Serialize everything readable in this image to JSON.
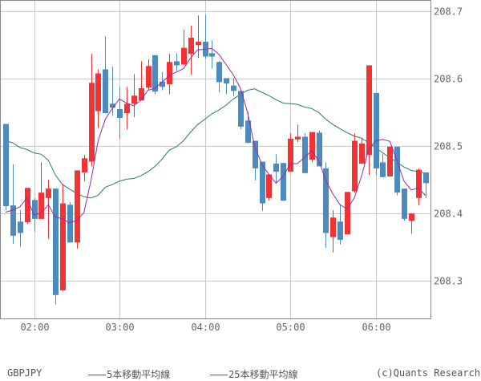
{
  "chart_data": {
    "type": "candlestick",
    "symbol": "GBPJPY",
    "copyright": "(c)Quants Research",
    "ylim": [
      208.243,
      208.717
    ],
    "y_ticks": [
      "208.3",
      "208.4",
      "208.5",
      "208.6",
      "208.7"
    ],
    "x_ticks": [
      "02:00",
      "03:00",
      "04:00",
      "05:00",
      "06:00"
    ],
    "x_range": [
      "01:40",
      "06:35"
    ],
    "interval_minutes": 5,
    "grid": true,
    "legend_placement": "bottom",
    "colors": {
      "up": "#f33333",
      "down": "#4d8bbd",
      "ma5": "#9b27b0",
      "ma25": "#2a7a70",
      "grid": "#c8c8c8",
      "frame": "#888888"
    },
    "candle_fields": [
      "time",
      "open",
      "high",
      "low",
      "close"
    ],
    "candles": [
      [
        "01:40",
        208.533,
        208.533,
        208.405,
        208.411
      ],
      [
        "01:45",
        208.412,
        208.473,
        208.355,
        208.367
      ],
      [
        "01:50",
        208.388,
        208.405,
        208.351,
        208.371
      ],
      [
        "01:55",
        208.387,
        208.438,
        208.385,
        208.438
      ],
      [
        "02:00",
        208.42,
        208.423,
        208.373,
        208.392
      ],
      [
        "02:05",
        208.392,
        208.476,
        208.392,
        208.431
      ],
      [
        "02:10",
        208.423,
        208.45,
        208.363,
        208.437
      ],
      [
        "02:15",
        208.437,
        208.437,
        208.265,
        208.279
      ],
      [
        "02:20",
        208.286,
        208.444,
        208.285,
        208.415
      ],
      [
        "02:25",
        208.413,
        208.417,
        208.357,
        208.357
      ],
      [
        "02:30",
        208.357,
        208.464,
        208.348,
        208.464
      ],
      [
        "02:35",
        208.461,
        208.487,
        208.448,
        208.482
      ],
      [
        "02:40",
        208.477,
        208.637,
        208.47,
        208.594
      ],
      [
        "02:45",
        208.552,
        208.614,
        208.527,
        208.608
      ],
      [
        "02:50",
        208.614,
        208.663,
        208.549,
        208.549
      ],
      [
        "02:55",
        208.563,
        208.618,
        208.545,
        208.557
      ],
      [
        "03:00",
        208.555,
        208.588,
        208.511,
        208.542
      ],
      [
        "03:05",
        208.549,
        208.588,
        208.525,
        208.563
      ],
      [
        "03:10",
        208.563,
        208.607,
        208.543,
        208.575
      ],
      [
        "03:15",
        208.568,
        208.626,
        208.568,
        208.586
      ],
      [
        "03:20",
        208.587,
        208.629,
        208.583,
        208.619
      ],
      [
        "03:25",
        208.635,
        208.635,
        208.577,
        208.581
      ],
      [
        "03:30",
        208.596,
        208.61,
        208.583,
        208.588
      ],
      [
        "03:35",
        208.592,
        208.637,
        208.577,
        208.625
      ],
      [
        "03:40",
        208.626,
        208.638,
        208.612,
        208.62
      ],
      [
        "03:45",
        208.621,
        208.673,
        208.621,
        208.646
      ],
      [
        "03:50",
        208.637,
        208.679,
        208.606,
        208.661
      ],
      [
        "03:55",
        208.65,
        208.694,
        208.631,
        208.655
      ],
      [
        "04:00",
        208.655,
        208.695,
        208.63,
        208.633
      ],
      [
        "04:05",
        208.638,
        208.657,
        208.615,
        208.633
      ],
      [
        "04:10",
        208.625,
        208.626,
        208.58,
        208.595
      ],
      [
        "04:15",
        208.601,
        208.601,
        208.577,
        208.593
      ],
      [
        "04:20",
        208.59,
        208.601,
        208.574,
        208.582
      ],
      [
        "04:25",
        208.582,
        208.582,
        208.525,
        208.529
      ],
      [
        "04:30",
        208.538,
        208.551,
        208.504,
        208.505
      ],
      [
        "04:35",
        208.508,
        208.508,
        208.449,
        208.467
      ],
      [
        "04:40",
        208.477,
        208.477,
        208.404,
        208.415
      ],
      [
        "04:45",
        208.423,
        208.458,
        208.419,
        208.458
      ],
      [
        "04:50",
        208.474,
        208.488,
        208.445,
        208.462
      ],
      [
        "04:55",
        208.475,
        208.475,
        208.419,
        208.419
      ],
      [
        "05:00",
        208.462,
        208.519,
        208.462,
        208.511
      ],
      [
        "05:05",
        208.51,
        208.532,
        208.506,
        208.514
      ],
      [
        "05:10",
        208.514,
        208.519,
        208.46,
        208.46
      ],
      [
        "05:15",
        208.48,
        208.521,
        208.476,
        208.521
      ],
      [
        "05:20",
        208.52,
        208.523,
        208.47,
        208.47
      ],
      [
        "05:25",
        208.467,
        208.476,
        208.349,
        208.371
      ],
      [
        "05:30",
        208.365,
        208.405,
        208.342,
        208.394
      ],
      [
        "05:35",
        208.388,
        208.414,
        208.354,
        208.361
      ],
      [
        "05:40",
        208.369,
        208.432,
        208.369,
        208.432
      ],
      [
        "05:45",
        208.433,
        208.519,
        208.431,
        208.508
      ],
      [
        "05:50",
        208.474,
        208.512,
        208.474,
        208.504
      ],
      [
        "05:55",
        208.487,
        208.62,
        208.457,
        208.62
      ],
      [
        "06:00",
        208.579,
        208.579,
        208.457,
        208.467
      ],
      [
        "06:05",
        208.476,
        208.488,
        208.454,
        208.454
      ],
      [
        "06:10",
        208.455,
        208.5,
        208.455,
        208.499
      ],
      [
        "06:15",
        208.499,
        208.499,
        208.427,
        208.431
      ],
      [
        "06:20",
        208.437,
        208.437,
        208.389,
        208.392
      ],
      [
        "06:25",
        208.389,
        208.4,
        208.37,
        208.4
      ],
      [
        "06:30",
        208.423,
        208.467,
        208.412,
        208.465
      ],
      [
        "06:35",
        208.461,
        208.461,
        208.423,
        208.445
      ]
    ],
    "series": [
      {
        "name": "5本移動平均線",
        "values": [
          208.402,
          208.405,
          208.41,
          208.423,
          208.398,
          208.401,
          208.413,
          208.395,
          208.392,
          208.386,
          208.39,
          208.401,
          208.449,
          208.508,
          208.54,
          208.556,
          208.57,
          208.564,
          208.56,
          208.568,
          208.583,
          208.586,
          208.595,
          208.605,
          208.61,
          208.615,
          208.631,
          208.643,
          208.644,
          208.645,
          208.636,
          208.621,
          208.606,
          208.586,
          208.55,
          208.5,
          208.473,
          208.458,
          208.445,
          208.455,
          208.474,
          208.474,
          208.483,
          208.493,
          208.479,
          208.449,
          208.429,
          208.413,
          208.407,
          208.423,
          208.455,
          208.494,
          208.508,
          208.51,
          208.507,
          208.479,
          208.448,
          208.435,
          208.438,
          208.427
        ]
      },
      {
        "name": "25本移動平均線",
        "values": [
          208.508,
          208.505,
          208.498,
          208.495,
          208.49,
          208.488,
          208.479,
          208.457,
          208.443,
          208.436,
          208.43,
          208.425,
          208.423,
          208.427,
          208.439,
          208.443,
          208.448,
          208.451,
          208.452,
          208.456,
          208.462,
          208.47,
          208.481,
          208.494,
          208.499,
          208.508,
          208.521,
          208.532,
          208.54,
          208.548,
          208.554,
          208.561,
          208.57,
          208.577,
          208.583,
          208.585,
          208.58,
          208.575,
          208.569,
          208.564,
          208.563,
          208.562,
          208.558,
          208.556,
          208.55,
          208.54,
          208.532,
          208.526,
          208.52,
          208.515,
          208.512,
          208.505,
          208.498,
          208.49,
          208.483,
          208.476,
          208.469,
          208.464,
          208.462,
          208.46
        ]
      }
    ]
  }
}
